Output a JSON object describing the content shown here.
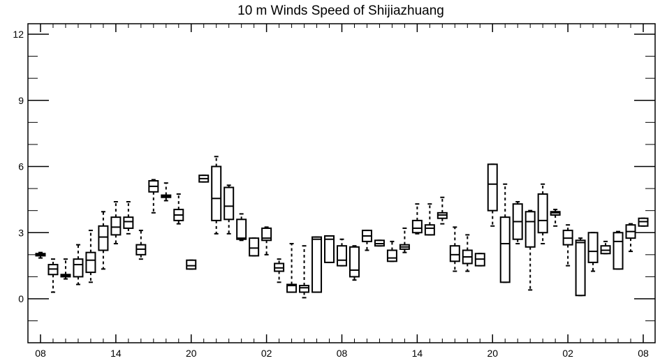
{
  "chart_data": {
    "type": "box",
    "title": "10 m Winds Speed of Shijiazhuang",
    "xlabel": "",
    "ylabel": "",
    "ylim": [
      -2,
      12.2
    ],
    "yticks": [
      "0",
      "3",
      "6",
      "9",
      "12"
    ],
    "ytick_values": [
      0,
      3,
      6,
      9,
      12
    ],
    "xtick_labels": [
      "08",
      "14",
      "20",
      "02",
      "08",
      "14",
      "20",
      "02",
      "08"
    ],
    "xtick_hours": [
      0,
      6,
      12,
      18,
      24,
      30,
      36,
      42,
      48
    ],
    "grid": false,
    "series": [
      {
        "hour": 0,
        "q1": 1.95,
        "q3": 2.05,
        "median": 2.0,
        "lo": 1.85,
        "hi": 2.1
      },
      {
        "hour": 1,
        "q1": 1.1,
        "q3": 1.55,
        "median": 1.35,
        "lo": 0.3,
        "hi": 1.8
      },
      {
        "hour": 2,
        "q1": 1.0,
        "q3": 1.1,
        "median": 1.05,
        "lo": 0.9,
        "hi": 1.8
      },
      {
        "hour": 3,
        "q1": 1.0,
        "q3": 1.8,
        "median": 1.55,
        "lo": 0.65,
        "hi": 2.45
      },
      {
        "hour": 4,
        "q1": 1.2,
        "q3": 2.1,
        "median": 1.75,
        "lo": 0.75,
        "hi": 3.1
      },
      {
        "hour": 5,
        "q1": 2.2,
        "q3": 3.3,
        "median": 2.8,
        "lo": 1.35,
        "hi": 3.95
      },
      {
        "hour": 6,
        "q1": 2.9,
        "q3": 3.7,
        "median": 3.25,
        "lo": 2.5,
        "hi": 4.4
      },
      {
        "hour": 7,
        "q1": 3.2,
        "q3": 3.7,
        "median": 3.5,
        "lo": 2.95,
        "hi": 4.4
      },
      {
        "hour": 8,
        "q1": 2.0,
        "q3": 2.45,
        "median": 2.25,
        "lo": 1.8,
        "hi": 3.1
      },
      {
        "hour": 9,
        "q1": 4.85,
        "q3": 5.35,
        "median": 5.1,
        "lo": 3.9,
        "hi": 5.4
      },
      {
        "hour": 10,
        "q1": 4.6,
        "q3": 4.7,
        "median": 4.65,
        "lo": 4.45,
        "hi": 5.25
      },
      {
        "hour": 11,
        "q1": 3.55,
        "q3": 4.05,
        "median": 3.8,
        "lo": 3.4,
        "hi": 4.75
      },
      {
        "hour": 12,
        "q1": 1.35,
        "q3": 1.75,
        "median": 1.5,
        "lo": 1.35,
        "hi": 1.75
      },
      {
        "hour": 13,
        "q1": 5.3,
        "q3": 5.6,
        "median": 5.45,
        "lo": 5.3,
        "hi": 5.6
      },
      {
        "hour": 14,
        "q1": 3.55,
        "q3": 6.0,
        "median": 4.55,
        "lo": 2.95,
        "hi": 6.45
      },
      {
        "hour": 15,
        "q1": 3.6,
        "q3": 5.05,
        "median": 4.2,
        "lo": 2.95,
        "hi": 5.15
      },
      {
        "hour": 16,
        "q1": 2.7,
        "q3": 3.6,
        "median": 2.75,
        "lo": 2.65,
        "hi": 3.85
      },
      {
        "hour": 17,
        "q1": 1.95,
        "q3": 2.75,
        "median": 2.3,
        "lo": 1.95,
        "hi": 2.75
      },
      {
        "hour": 18,
        "q1": 2.65,
        "q3": 3.2,
        "median": 2.75,
        "lo": 2.0,
        "hi": 3.25
      },
      {
        "hour": 19,
        "q1": 1.25,
        "q3": 1.6,
        "median": 1.4,
        "lo": 0.75,
        "hi": 1.8
      },
      {
        "hour": 20,
        "q1": 0.3,
        "q3": 0.65,
        "median": 0.6,
        "lo": 0.3,
        "hi": 2.5
      },
      {
        "hour": 21,
        "q1": 0.3,
        "q3": 0.6,
        "median": 0.5,
        "lo": 0.05,
        "hi": 2.4
      },
      {
        "hour": 22,
        "q1": 0.3,
        "q3": 2.8,
        "median": 2.7,
        "lo": 0.3,
        "hi": 2.8
      },
      {
        "hour": 23,
        "q1": 1.65,
        "q3": 2.85,
        "median": 2.7,
        "lo": 1.65,
        "hi": 2.85
      },
      {
        "hour": 24,
        "q1": 1.5,
        "q3": 2.4,
        "median": 1.75,
        "lo": 1.5,
        "hi": 2.7
      },
      {
        "hour": 25,
        "q1": 1.0,
        "q3": 2.35,
        "median": 1.3,
        "lo": 0.85,
        "hi": 2.4
      },
      {
        "hour": 26,
        "q1": 2.6,
        "q3": 3.1,
        "median": 2.85,
        "lo": 2.2,
        "hi": 3.1
      },
      {
        "hour": 27,
        "q1": 2.4,
        "q3": 2.65,
        "median": 2.5,
        "lo": 2.4,
        "hi": 2.65
      },
      {
        "hour": 28,
        "q1": 1.7,
        "q3": 2.2,
        "median": 1.85,
        "lo": 1.7,
        "hi": 2.6
      },
      {
        "hour": 29,
        "q1": 2.25,
        "q3": 2.45,
        "median": 2.35,
        "lo": 2.1,
        "hi": 3.2
      },
      {
        "hour": 30,
        "q1": 3.0,
        "q3": 3.55,
        "median": 3.2,
        "lo": 2.95,
        "hi": 4.3
      },
      {
        "hour": 31,
        "q1": 2.9,
        "q3": 3.35,
        "median": 3.2,
        "lo": 2.9,
        "hi": 4.3
      },
      {
        "hour": 32,
        "q1": 3.65,
        "q3": 3.9,
        "median": 3.8,
        "lo": 3.4,
        "hi": 4.6
      },
      {
        "hour": 33,
        "q1": 1.7,
        "q3": 2.4,
        "median": 2.0,
        "lo": 1.25,
        "hi": 3.25
      },
      {
        "hour": 34,
        "q1": 1.6,
        "q3": 2.2,
        "median": 1.9,
        "lo": 1.25,
        "hi": 2.9
      },
      {
        "hour": 35,
        "q1": 1.5,
        "q3": 2.05,
        "median": 1.8,
        "lo": 1.5,
        "hi": 2.05
      },
      {
        "hour": 36,
        "q1": 4.0,
        "q3": 6.1,
        "median": 5.2,
        "lo": 3.3,
        "hi": 6.1
      },
      {
        "hour": 37,
        "q1": 0.75,
        "q3": 3.7,
        "median": 2.5,
        "lo": 0.75,
        "hi": 5.2
      },
      {
        "hour": 38,
        "q1": 2.7,
        "q3": 4.3,
        "median": 3.5,
        "lo": 2.5,
        "hi": 4.4
      },
      {
        "hour": 39,
        "q1": 2.35,
        "q3": 3.95,
        "median": 3.5,
        "lo": 0.4,
        "hi": 4.0
      },
      {
        "hour": 40,
        "q1": 3.0,
        "q3": 4.75,
        "median": 3.55,
        "lo": 2.5,
        "hi": 5.2
      },
      {
        "hour": 41,
        "q1": 3.8,
        "q3": 3.95,
        "median": 3.9,
        "lo": 3.3,
        "hi": 4.05
      },
      {
        "hour": 42,
        "q1": 2.45,
        "q3": 3.1,
        "median": 2.75,
        "lo": 1.5,
        "hi": 3.35
      },
      {
        "hour": 43,
        "q1": 0.15,
        "q3": 2.65,
        "median": 2.55,
        "lo": 0.15,
        "hi": 2.75
      },
      {
        "hour": 44,
        "q1": 1.65,
        "q3": 3.0,
        "median": 2.15,
        "lo": 1.25,
        "hi": 3.0
      },
      {
        "hour": 45,
        "q1": 2.05,
        "q3": 2.4,
        "median": 2.2,
        "lo": 2.05,
        "hi": 2.6
      },
      {
        "hour": 46,
        "q1": 1.35,
        "q3": 3.0,
        "median": 2.6,
        "lo": 1.35,
        "hi": 3.05
      },
      {
        "hour": 47,
        "q1": 2.75,
        "q3": 3.35,
        "median": 3.05,
        "lo": 2.15,
        "hi": 3.4
      },
      {
        "hour": 48,
        "q1": 3.3,
        "q3": 3.65,
        "median": 3.5,
        "lo": 3.3,
        "hi": 3.65
      }
    ]
  }
}
